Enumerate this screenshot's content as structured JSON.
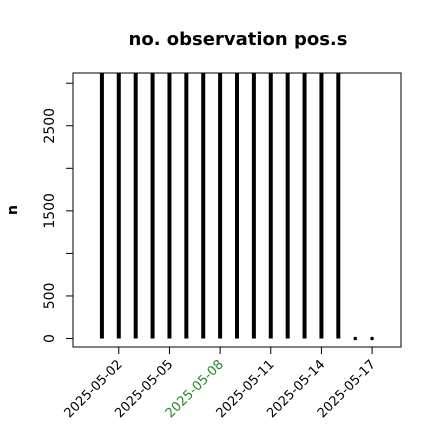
{
  "chart_data": {
    "type": "bar",
    "title": "no. observation pos.s",
    "y_label": "n",
    "x": [
      "2025-05-01",
      "2025-05-02",
      "2025-05-03",
      "2025-05-04",
      "2025-05-05",
      "2025-05-06",
      "2025-05-07",
      "2025-05-08",
      "2025-05-09",
      "2025-05-10",
      "2025-05-11",
      "2025-05-12",
      "2025-05-13",
      "2025-05-14",
      "2025-05-15",
      "2025-05-16",
      "2025-05-17"
    ],
    "values": [
      3120,
      3120,
      3120,
      3120,
      3120,
      3120,
      3120,
      3120,
      3120,
      3120,
      3120,
      3120,
      3120,
      3120,
      3120,
      0,
      0
    ],
    "color": "#000000",
    "ylim": [
      -100,
      3120
    ],
    "yticks": [
      0,
      500,
      {
        "value": 1000,
        "label": null
      },
      1500,
      {
        "value": 2000,
        "label": null
      },
      2500,
      {
        "value": 3000,
        "label": null
      }
    ],
    "xticks": [
      "2025-05-02",
      "2025-05-05",
      "2025-05-08",
      "2025-05-11",
      "2025-05-14",
      "2025-05-17"
    ],
    "xtick_colors": [
      "#000000",
      "#000000",
      "#228B22",
      "#000000",
      "#000000",
      "#000000"
    ]
  }
}
